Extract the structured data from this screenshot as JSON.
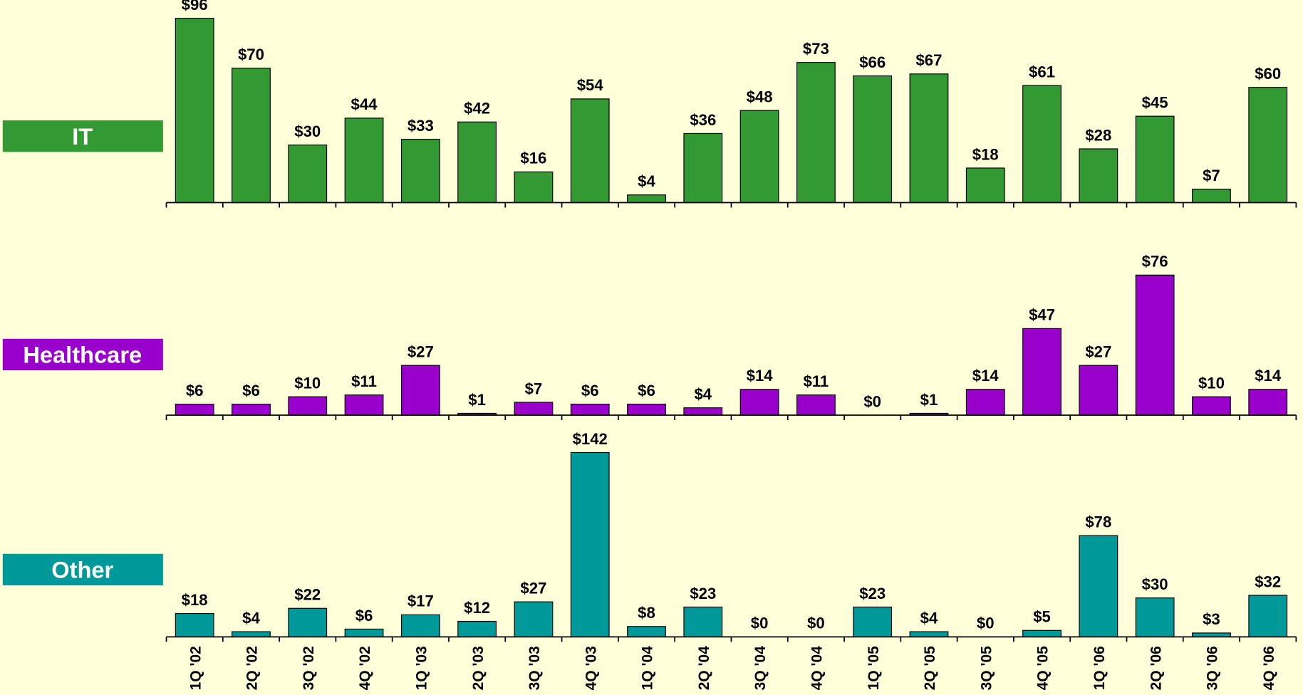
{
  "chart_data": [
    {
      "type": "bar",
      "label": "IT",
      "color": "#339933",
      "ylim": [
        0,
        96
      ],
      "values": [
        96,
        70,
        30,
        44,
        33,
        42,
        16,
        54,
        4,
        36,
        48,
        73,
        66,
        67,
        18,
        61,
        28,
        45,
        7,
        60
      ],
      "value_labels": [
        "$96",
        "$70",
        "$30",
        "$44",
        "$33",
        "$42",
        "$16",
        "$54",
        "$4",
        "$36",
        "$48",
        "$73",
        "$66",
        "$67",
        "$18",
        "$61",
        "$28",
        "$45",
        "$7",
        "$60"
      ]
    },
    {
      "type": "bar",
      "label": "Healthcare",
      "color": "#9900cc",
      "ylim": [
        0,
        100
      ],
      "values": [
        6,
        6,
        10,
        11,
        27,
        1,
        7,
        6,
        6,
        4,
        14,
        11,
        0,
        1,
        14,
        47,
        27,
        76,
        10,
        14
      ],
      "value_labels": [
        "$6",
        "$6",
        "$10",
        "$11",
        "$27",
        "$1",
        "$7",
        "$6",
        "$6",
        "$4",
        "$14",
        "$11",
        "$0",
        "$1",
        "$14",
        "$47",
        "$27",
        "$76",
        "$10",
        "$14"
      ]
    },
    {
      "type": "bar",
      "label": "Other",
      "color": "#009999",
      "ylim": [
        0,
        142
      ],
      "categories": [
        "1Q '02",
        "2Q '02",
        "3Q '02",
        "4Q '02",
        "1Q '03",
        "2Q '03",
        "3Q '03",
        "4Q '03",
        "1Q '04",
        "2Q '04",
        "3Q '04",
        "4Q '04",
        "1Q '05",
        "2Q '05",
        "3Q '05",
        "4Q '05",
        "1Q '06",
        "2Q '06",
        "3Q '06",
        "4Q '06"
      ],
      "values": [
        18,
        4,
        22,
        6,
        17,
        12,
        27,
        142,
        8,
        23,
        0,
        0,
        23,
        4,
        0,
        5,
        78,
        30,
        3,
        32
      ],
      "value_labels": [
        "$18",
        "$4",
        "$22",
        "$6",
        "$17",
        "$12",
        "$27",
        "$142",
        "$8",
        "$23",
        "$0",
        "$0",
        "$23",
        "$4",
        "$0",
        "$5",
        "$78",
        "$30",
        "$3",
        "$32"
      ]
    }
  ]
}
